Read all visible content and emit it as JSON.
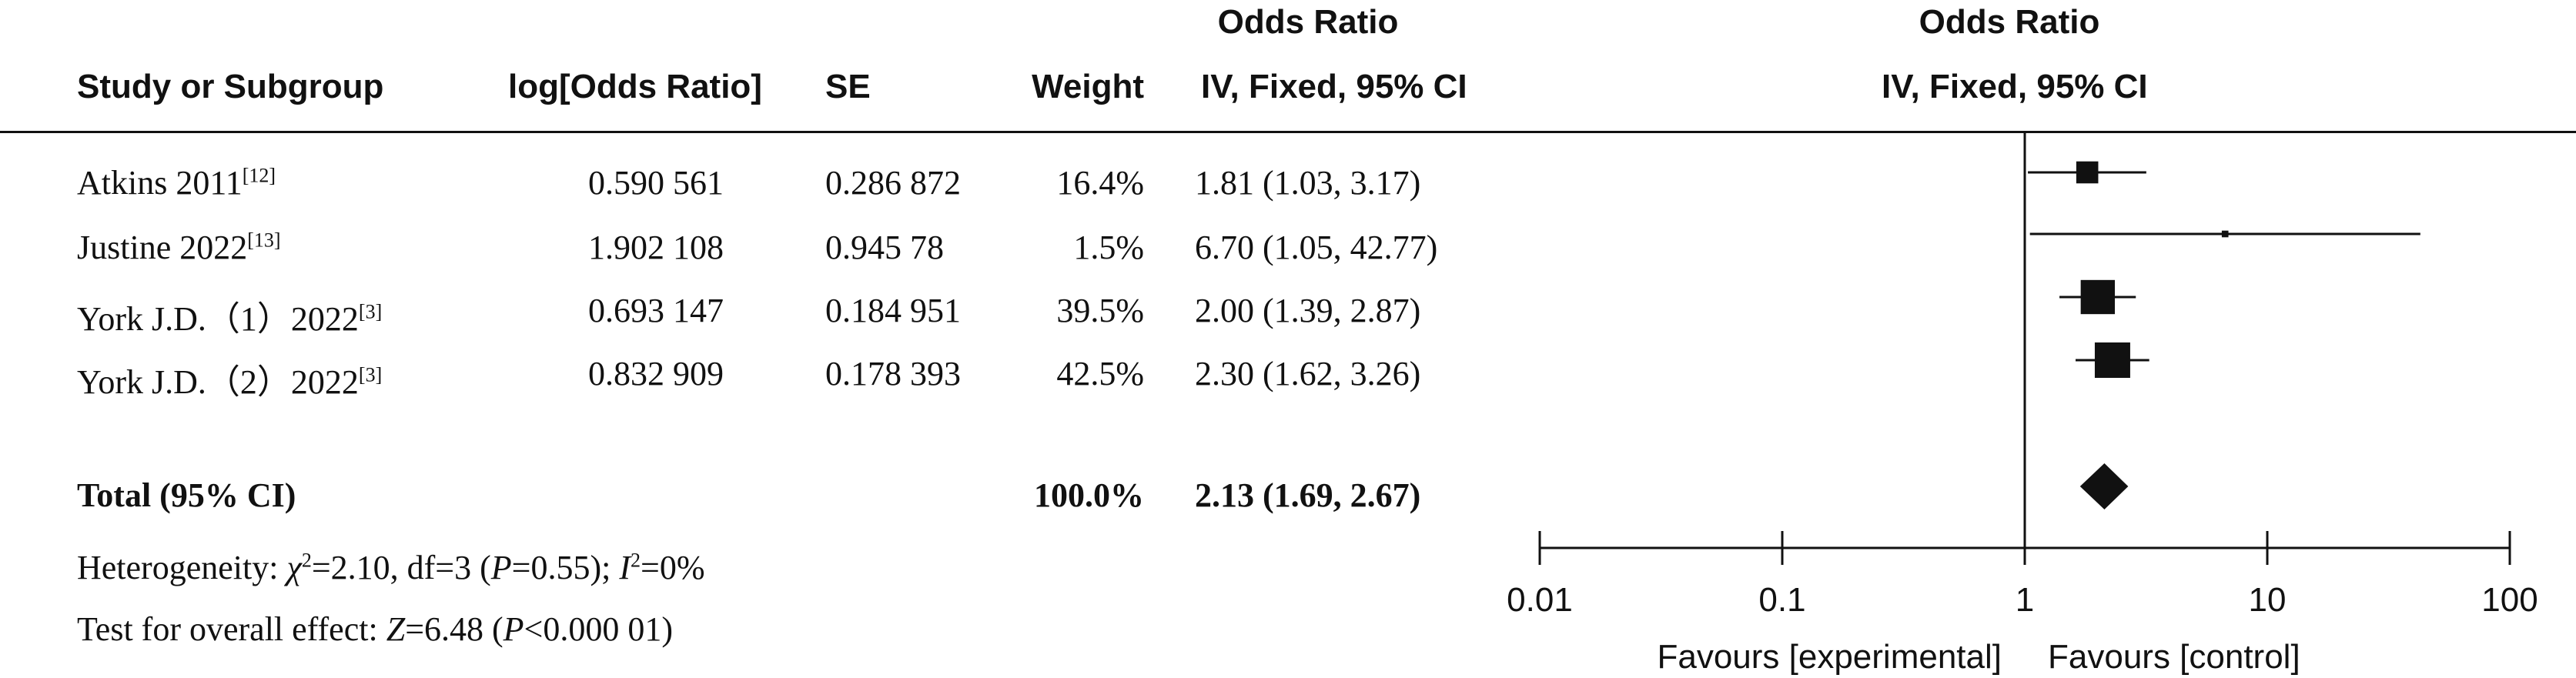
{
  "headers": {
    "study": "Study or Subgroup",
    "log_or": "log[Odds Ratio]",
    "se": "SE",
    "weight": "Weight",
    "or_title": "Odds Ratio",
    "or_method": "IV, Fixed, 95% CI",
    "plot_title": "Odds Ratio",
    "plot_method": "IV, Fixed, 95% CI"
  },
  "studies": [
    {
      "name": "Atkins 2011",
      "ref": "[12]",
      "log_or": "0.590 561",
      "se": "0.286 872",
      "weight": "16.4%",
      "ci": "1.81 (1.03, 3.17)"
    },
    {
      "name": "Justine 2022",
      "ref": "[13]",
      "log_or": "1.902 108",
      "se": "0.945 78",
      "weight": "1.5%",
      "ci": "6.70 (1.05, 42.77)"
    },
    {
      "name": "York J.D.（1）2022",
      "ref": "[3]",
      "log_or": "0.693 147",
      "se": "0.184 951",
      "weight": "39.5%",
      "ci": "2.00 (1.39, 2.87)"
    },
    {
      "name": "York J.D.（2）2022",
      "ref": "[3]",
      "log_or": "0.832 909",
      "se": "0.178 393",
      "weight": "42.5%",
      "ci": "2.30 (1.62, 3.26)"
    }
  ],
  "total": {
    "label": "Total (95% CI)",
    "weight": "100.0%",
    "ci": "2.13 (1.69, 2.67)"
  },
  "heterogeneity": {
    "prefix": "Heterogeneity: ",
    "chi_symbol": "χ",
    "chi_rest": "=2.10, df=3 (",
    "p_symbol": "P",
    "p_rest": "=0.55); ",
    "i_symbol": "I",
    "i_rest": "=0%"
  },
  "overall": {
    "prefix": "Test for overall effect: ",
    "z_symbol": "Z",
    "z_rest": "=6.48 (",
    "p_symbol": "P",
    "p_rest": "<0.000 01)"
  },
  "chart_data": {
    "type": "scatter",
    "scale": "log",
    "xlim": [
      0.01,
      100
    ],
    "ticks": [
      0.01,
      0.1,
      1,
      10,
      100
    ],
    "tick_labels": [
      "0.01",
      "0.1",
      "1",
      "10",
      "100"
    ],
    "reference_line": 1,
    "xlabel_left": "Favours [experimental]",
    "xlabel_right": "Favours [control]",
    "points": [
      {
        "or": 1.81,
        "low": 1.03,
        "high": 3.17,
        "weight": 16.4
      },
      {
        "or": 6.7,
        "low": 1.05,
        "high": 42.77,
        "weight": 1.5
      },
      {
        "or": 2.0,
        "low": 1.39,
        "high": 2.87,
        "weight": 39.5
      },
      {
        "or": 2.3,
        "low": 1.62,
        "high": 3.26,
        "weight": 42.5
      }
    ],
    "total": {
      "or": 2.13,
      "low": 1.69,
      "high": 2.67
    },
    "colors": {
      "ink": "#111111"
    }
  }
}
